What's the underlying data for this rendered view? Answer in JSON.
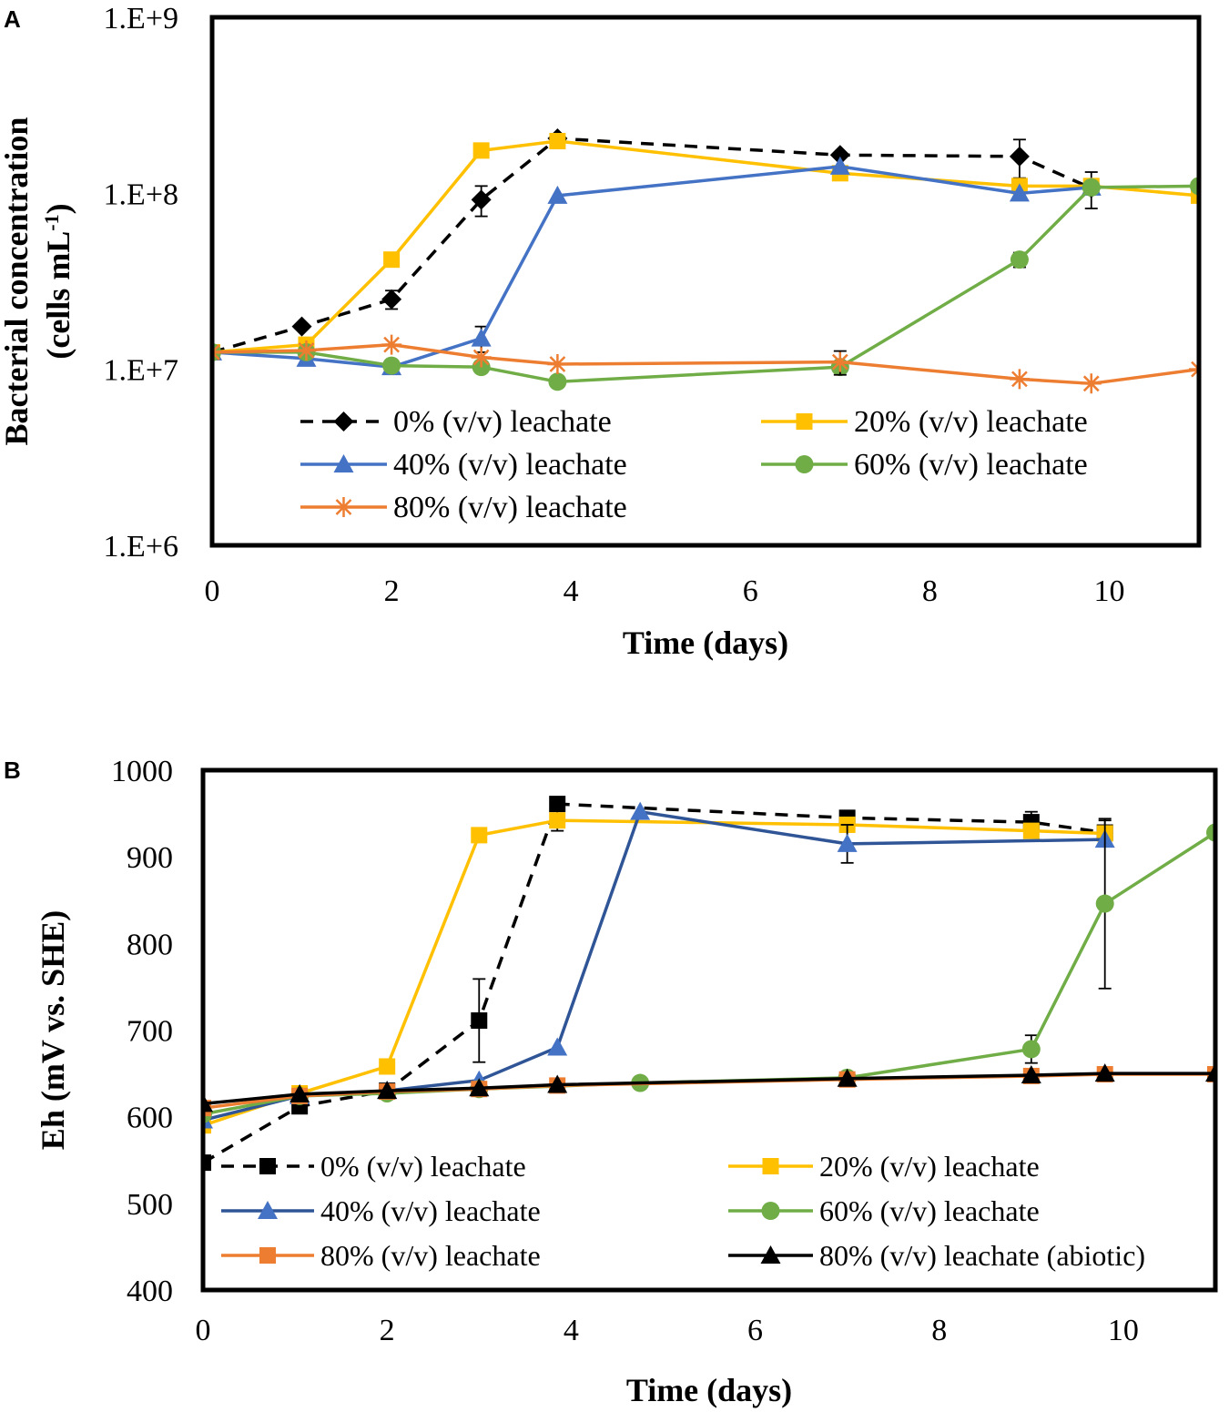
{
  "chart_data": [
    {
      "panel_label": "A",
      "type": "line",
      "yscale": "log",
      "xlabel": "Time (days)",
      "ylabel_line1": "Bacterial concentration",
      "ylabel_line2_main": "(cells mL",
      "ylabel_line2_sup": "-1",
      "ylabel_line2_end": ")",
      "xlim": [
        0,
        11
      ],
      "ylim": [
        1000000,
        1000000000
      ],
      "xticks": [
        0,
        2,
        4,
        6,
        8,
        10
      ],
      "xtick_labels": [
        "0",
        "2",
        "4",
        "6",
        "8",
        "10"
      ],
      "yticks": [
        1000000,
        10000000,
        100000000,
        1000000000
      ],
      "ytick_labels": [
        "1.E+6",
        "1.E+7",
        "1.E+8",
        "1.E+9"
      ],
      "legend_columns": 2,
      "series": [
        {
          "name": "0% (v/v) leachate",
          "color": "#000000",
          "dash": true,
          "marker": "diamond",
          "x": [
            0,
            1,
            2,
            3,
            3.85,
            7,
            9,
            9.8
          ],
          "y": [
            12500000,
            17500000,
            25000000,
            92000000,
            205000000,
            165000000,
            162000000,
            107000000
          ],
          "err": [
            0,
            0,
            3000000,
            18000000,
            0,
            0,
            40000000,
            25000000
          ]
        },
        {
          "name": "20% (v/v) leachate",
          "color": "#FFC000",
          "dash": false,
          "marker": "square",
          "x": [
            0,
            1.05,
            2,
            3,
            3.85,
            7,
            9,
            9.8,
            11
          ],
          "y": [
            12500000,
            13800000,
            42000000,
            175000000,
            198000000,
            130000000,
            110000000,
            110000000,
            97000000
          ],
          "err": [
            0,
            0,
            0,
            10000000,
            0,
            0,
            0,
            0,
            0
          ]
        },
        {
          "name": "40% (v/v) leachate",
          "color": "#4472C4",
          "dash": false,
          "marker": "triangle",
          "x": [
            0,
            1.05,
            2,
            3,
            3.85,
            7,
            9,
            9.8
          ],
          "y": [
            12500000,
            11500000,
            10300000,
            15000000,
            97000000,
            142000000,
            100000000,
            108000000
          ],
          "err": [
            0,
            0,
            0,
            2500000,
            0,
            0,
            0,
            0
          ]
        },
        {
          "name": "60% (v/v) leachate",
          "color": "#70AD47",
          "dash": false,
          "marker": "circle",
          "x": [
            0,
            1.05,
            2,
            3,
            3.85,
            7,
            9,
            9.8,
            11
          ],
          "y": [
            12500000,
            12500000,
            10500000,
            10300000,
            8500000,
            10300000,
            42000000,
            108000000,
            110000000
          ],
          "err": [
            0,
            0,
            0,
            0,
            0,
            0,
            4000000,
            0,
            0
          ]
        },
        {
          "name": "80% (v/v) leachate",
          "color": "#ED7D31",
          "dash": false,
          "marker": "star",
          "x": [
            0,
            1.05,
            2,
            3,
            3.85,
            7,
            9,
            9.8,
            11
          ],
          "y": [
            12500000,
            12800000,
            13800000,
            11700000,
            10700000,
            11000000,
            8800000,
            8300000,
            10000000
          ],
          "err": [
            0,
            0,
            0,
            0,
            0,
            1700000,
            0,
            0,
            0
          ]
        }
      ]
    },
    {
      "panel_label": "B",
      "type": "line",
      "yscale": "linear",
      "xlabel": "Time (days)",
      "ylabel_line1": "Eh (mV vs. SHE)",
      "xlim": [
        0,
        11
      ],
      "ylim": [
        400,
        1000
      ],
      "xticks": [
        0,
        2,
        4,
        6,
        8,
        10
      ],
      "xtick_labels": [
        "0",
        "2",
        "4",
        "6",
        "8",
        "10"
      ],
      "yticks": [
        400,
        500,
        600,
        700,
        800,
        900,
        1000
      ],
      "ytick_labels": [
        "400",
        "500",
        "600",
        "700",
        "800",
        "900",
        "1000"
      ],
      "legend_columns": 2,
      "series": [
        {
          "name": "0% (v/v) leachate",
          "color": "#000000",
          "dash": true,
          "marker": "square",
          "x": [
            0,
            1.05,
            2,
            3,
            3.85,
            7,
            9,
            9.8
          ],
          "y": [
            547,
            612,
            630,
            711,
            961,
            945,
            940,
            928
          ],
          "err": [
            0,
            0,
            0,
            48,
            0,
            0,
            12,
            0
          ]
        },
        {
          "name": "20% (v/v) leachate",
          "color": "#FFC000",
          "dash": false,
          "marker": "square",
          "x": [
            0,
            1.05,
            2,
            3,
            3.85,
            7,
            9,
            9.8
          ],
          "y": [
            590,
            627,
            658,
            925,
            942,
            937,
            930,
            927
          ],
          "err": [
            0,
            0,
            0,
            0,
            12,
            0,
            0,
            15
          ]
        },
        {
          "name": "40% (v/v) leachate",
          "color": "#4472C4",
          "line_color": "#2F5597",
          "dash": false,
          "marker": "triangle",
          "x": [
            0,
            1.05,
            2,
            3,
            3.85,
            4.75,
            7,
            9.8
          ],
          "y": [
            596,
            624,
            630,
            642,
            680,
            952,
            915,
            920
          ],
          "err": [
            0,
            0,
            0,
            0,
            0,
            0,
            22,
            0
          ]
        },
        {
          "name": "60% (v/v) leachate",
          "color": "#70AD47",
          "dash": false,
          "marker": "circle",
          "x": [
            0,
            1.05,
            2,
            3,
            4.75,
            7,
            9,
            9.8,
            11
          ],
          "y": [
            603,
            624,
            627,
            632,
            639,
            645,
            678,
            846,
            928
          ],
          "err": [
            0,
            0,
            0,
            0,
            0,
            0,
            16,
            98,
            0
          ]
        },
        {
          "name": "80% (v/v) leachate",
          "color": "#ED7D31",
          "dash": false,
          "marker": "square",
          "x": [
            0,
            1.05,
            2,
            3,
            3.85,
            7,
            9,
            9.8,
            11
          ],
          "y": [
            610,
            624,
            629,
            632,
            636,
            643,
            647,
            649,
            649
          ],
          "err": [
            0,
            0,
            0,
            0,
            0,
            0,
            0,
            0,
            0
          ]
        },
        {
          "name": "80% (v/v) leachate (abiotic)",
          "color": "#000000",
          "dash": false,
          "marker": "triangle",
          "x": [
            0,
            1.05,
            2,
            3,
            3.85,
            7,
            9,
            9.8,
            11
          ],
          "y": [
            615,
            626,
            630,
            633,
            637,
            644,
            648,
            650,
            650
          ],
          "err": [
            0,
            0,
            0,
            0,
            0,
            0,
            0,
            0,
            0
          ]
        }
      ]
    }
  ]
}
